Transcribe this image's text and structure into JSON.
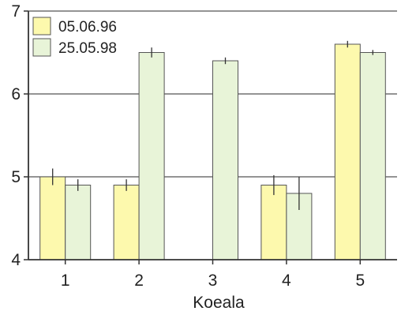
{
  "chart_data": {
    "type": "bar",
    "title": "",
    "xlabel": "Koeala",
    "ylabel": "",
    "categories": [
      "1",
      "2",
      "3",
      "4",
      "5"
    ],
    "ylim": [
      4,
      7
    ],
    "yticks": [
      4,
      5,
      6,
      7
    ],
    "grid": "horizontal",
    "legend_position": "top-left",
    "series": [
      {
        "name": "05.06.96",
        "color": "#fdf9ad",
        "values": [
          5.0,
          4.9,
          null,
          4.9,
          6.6
        ],
        "errors": [
          0.1,
          0.07,
          null,
          0.12,
          0.04
        ]
      },
      {
        "name": "25.05.98",
        "color": "#e8f4d8",
        "values": [
          4.9,
          6.5,
          6.4,
          4.8,
          6.5
        ],
        "errors": [
          0.07,
          0.06,
          0.04,
          0.2,
          0.03
        ]
      }
    ]
  }
}
